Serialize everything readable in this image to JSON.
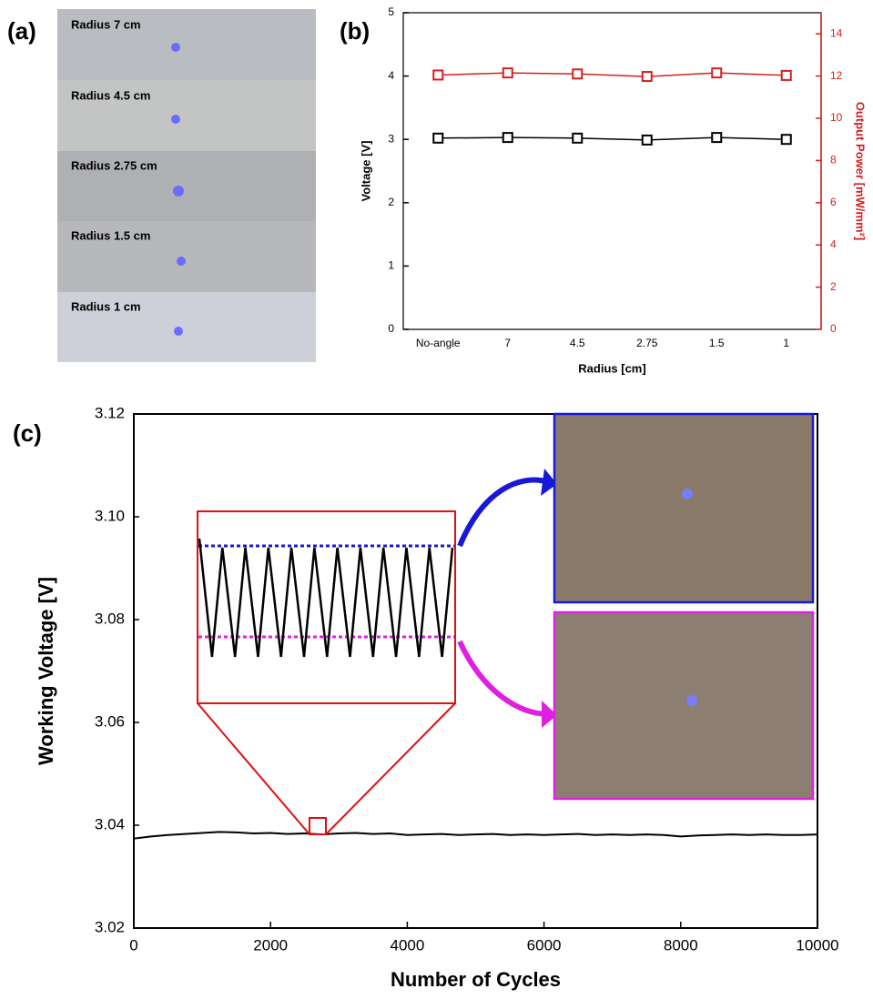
{
  "panel_labels": [
    "(a)",
    "(b)",
    "(c)"
  ],
  "photo_labels": [
    "Radius 7 cm",
    "Radius 4.5 cm",
    "Radius 2.75 cm",
    "Radius 1.5 cm",
    "Radius 1 cm"
  ],
  "chart_data": [
    {
      "type": "line",
      "categories": [
        "No-angle",
        "7",
        "4.5",
        "2.75",
        "1.5",
        "1"
      ],
      "series": [
        {
          "color": "#000000",
          "values": [
            3.02,
            3.03,
            3.02,
            2.99,
            3.03,
            3.0
          ]
        },
        {
          "color": "#d42020",
          "axis": "y2",
          "values": [
            12.05,
            12.15,
            12.1,
            11.98,
            12.15,
            12.03
          ]
        }
      ],
      "marker": "square",
      "xlabel": "Radius [cm]",
      "ylabel": "Voltage [V]",
      "y2label": "Output Power [mW/mm²]",
      "ylim": [
        0,
        5
      ],
      "yticks": [
        0,
        1,
        2,
        3,
        4,
        5
      ],
      "y2lim": [
        0,
        15
      ],
      "y2ticks": [
        0,
        2,
        4,
        6,
        8,
        10,
        12,
        14
      ]
    },
    {
      "type": "line",
      "x": [
        0,
        250,
        500,
        750,
        1000,
        1250,
        1500,
        1750,
        2000,
        2250,
        2500,
        2750,
        3000,
        3250,
        3500,
        3750,
        4000,
        4250,
        4500,
        4750,
        5000,
        5250,
        5500,
        5750,
        6000,
        6250,
        6500,
        6750,
        7000,
        7250,
        7500,
        7750,
        8000,
        8250,
        8500,
        8750,
        9000,
        9250,
        9500,
        9750,
        10000
      ],
      "series": [
        {
          "color": "#000000",
          "values": [
            3.0374,
            3.0378,
            3.0381,
            3.0383,
            3.0385,
            3.0387,
            3.0386,
            3.0384,
            3.0385,
            3.0383,
            3.0384,
            3.0382,
            3.0384,
            3.0385,
            3.0383,
            3.0384,
            3.0381,
            3.0382,
            3.0383,
            3.0381,
            3.0382,
            3.0383,
            3.0381,
            3.0382,
            3.0381,
            3.0382,
            3.0383,
            3.0381,
            3.0382,
            3.0381,
            3.0382,
            3.0381,
            3.0378,
            3.038,
            3.0381,
            3.0382,
            3.0381,
            3.0382,
            3.0381,
            3.0381,
            3.0382
          ]
        }
      ],
      "xlabel": "Number of Cycles",
      "ylabel": "Working Voltage [V]",
      "xlim": [
        0,
        10000
      ],
      "xticks": [
        0,
        2000,
        4000,
        6000,
        8000,
        10000
      ],
      "ylim": [
        3.02,
        3.12
      ],
      "yticks": [
        3.02,
        3.04,
        3.06,
        3.08,
        {
          "value": 3.1,
          "label": "3.10"
        },
        3.12
      ]
    }
  ]
}
